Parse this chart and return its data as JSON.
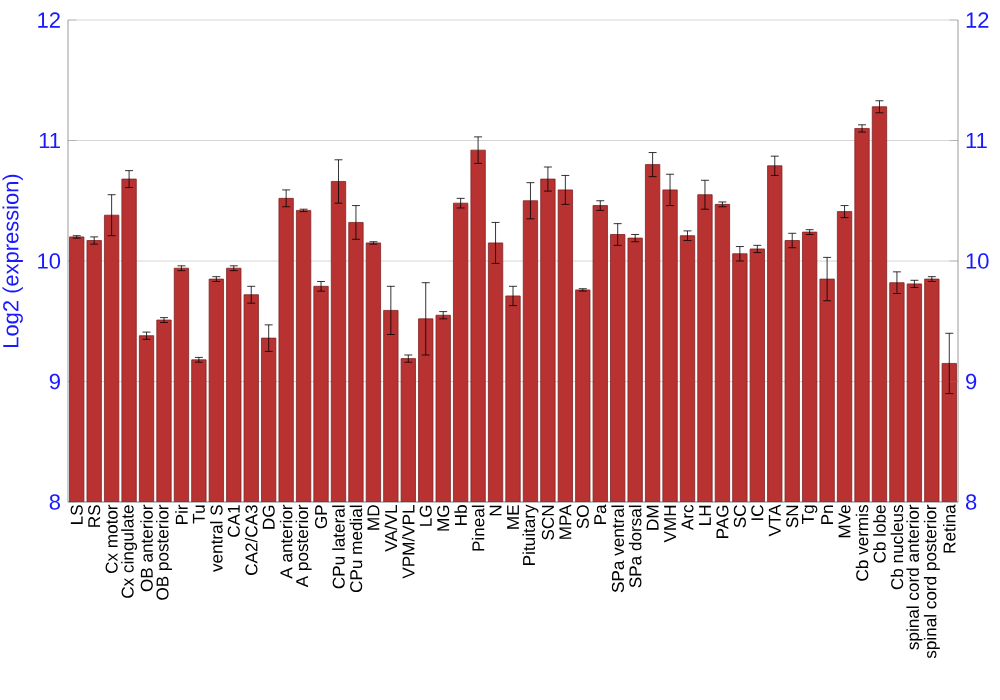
{
  "chart_data": {
    "type": "bar",
    "ylabel": "Log2 (expression)",
    "categories": [
      "LS",
      "RS",
      "Cx motor",
      "Cx cingulate",
      "OB anterior",
      "OB posterior",
      "Pir",
      "Tu",
      "ventral S",
      "CA1",
      "CA2/CA3",
      "DG",
      "A anterior",
      "A posterior",
      "GP",
      "CPu lateral",
      "CPu medial",
      "MD",
      "VA/VL",
      "VPM/VPL",
      "LG",
      "MG",
      "Hb",
      "Pineal",
      "N",
      "ME",
      "Pituitary",
      "SCN",
      "MPA",
      "SO",
      "Pa",
      "SPa ventral",
      "SPa dorsal",
      "DM",
      "VMH",
      "Arc",
      "LH",
      "PAG",
      "SC",
      "IC",
      "VTA",
      "SN",
      "Tg",
      "Pn",
      "MVe",
      "Cb vermis",
      "Cb lobe",
      "Cb nucleus",
      "spinal cord anterior",
      "spinal cord posterior",
      "Retina"
    ],
    "values": [
      10.2,
      10.17,
      10.38,
      10.68,
      9.38,
      9.51,
      9.94,
      9.18,
      9.85,
      9.94,
      9.72,
      9.36,
      10.52,
      10.42,
      9.79,
      10.66,
      10.32,
      10.15,
      9.59,
      9.19,
      9.52,
      9.55,
      10.48,
      10.92,
      10.15,
      9.71,
      10.5,
      10.68,
      10.59,
      9.76,
      10.46,
      10.22,
      10.19,
      10.8,
      10.59,
      10.21,
      10.55,
      10.47,
      10.06,
      10.1,
      10.79,
      10.17,
      10.24,
      9.85,
      10.41,
      11.1,
      11.28,
      9.82,
      9.81,
      9.85,
      9.15
    ],
    "errors": [
      0.01,
      0.03,
      0.17,
      0.07,
      0.03,
      0.02,
      0.02,
      0.02,
      0.02,
      0.02,
      0.07,
      0.11,
      0.07,
      0.01,
      0.04,
      0.18,
      0.14,
      0.01,
      0.2,
      0.03,
      0.3,
      0.03,
      0.04,
      0.11,
      0.17,
      0.08,
      0.15,
      0.1,
      0.12,
      0.01,
      0.04,
      0.09,
      0.03,
      0.1,
      0.13,
      0.04,
      0.12,
      0.02,
      0.06,
      0.03,
      0.08,
      0.06,
      0.02,
      0.18,
      0.05,
      0.03,
      0.05,
      0.09,
      0.03,
      0.02,
      0.25
    ],
    "color": "#b83232",
    "ylim": [
      8,
      12
    ],
    "yticks": [
      8,
      9,
      10,
      11,
      12
    ],
    "y2lim": [
      8,
      12
    ],
    "y2ticks": [
      8,
      9,
      10,
      11,
      12
    ],
    "grid": "y"
  }
}
